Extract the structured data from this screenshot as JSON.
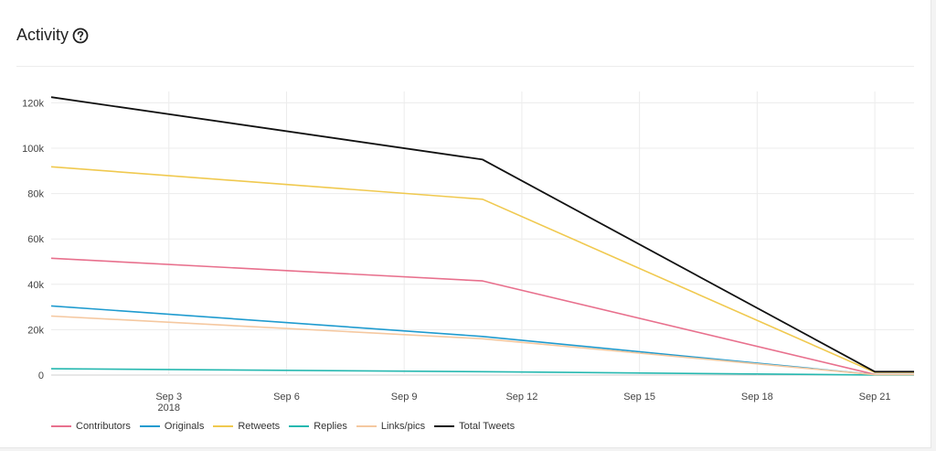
{
  "header": {
    "title": "Activity",
    "help_icon": "question-circle-icon"
  },
  "chart_data": {
    "type": "line",
    "x_axis": {
      "type": "date",
      "range": [
        "2018-08-31",
        "2018-09-22"
      ],
      "ticks": [
        {
          "date": "2018-09-03",
          "label": "Sep 3",
          "sublabel": "2018"
        },
        {
          "date": "2018-09-06",
          "label": "Sep 6"
        },
        {
          "date": "2018-09-09",
          "label": "Sep 9"
        },
        {
          "date": "2018-09-12",
          "label": "Sep 12"
        },
        {
          "date": "2018-09-15",
          "label": "Sep 15"
        },
        {
          "date": "2018-09-18",
          "label": "Sep 18"
        },
        {
          "date": "2018-09-21",
          "label": "Sep 21"
        }
      ]
    },
    "y_axis": {
      "range": [
        0,
        125000
      ],
      "ticks": [
        {
          "value": 0,
          "label": "0"
        },
        {
          "value": 20000,
          "label": "20k"
        },
        {
          "value": 40000,
          "label": "40k"
        },
        {
          "value": 60000,
          "label": "60k"
        },
        {
          "value": 80000,
          "label": "80k"
        },
        {
          "value": 100000,
          "label": "100k"
        },
        {
          "value": 120000,
          "label": "120k"
        }
      ]
    },
    "grid": true,
    "legend_position": "bottom-left",
    "x": [
      "2018-08-31",
      "2018-09-11",
      "2018-09-21",
      "2018-09-22"
    ],
    "series": [
      {
        "name": "Contributors",
        "color": "#e8708d",
        "values": [
          51500,
          41500,
          300,
          300
        ]
      },
      {
        "name": "Originals",
        "color": "#1f9bcf",
        "values": [
          30500,
          17000,
          200,
          200
        ]
      },
      {
        "name": "Retweets",
        "color": "#f0c94f",
        "values": [
          91800,
          77500,
          1200,
          1200
        ]
      },
      {
        "name": "Replies",
        "color": "#26b8b0",
        "values": [
          2800,
          1500,
          50,
          50
        ]
      },
      {
        "name": "Links/pics",
        "color": "#f5c8a0",
        "values": [
          26000,
          16000,
          150,
          150
        ]
      },
      {
        "name": "Total Tweets",
        "color": "#111111",
        "values": [
          122500,
          95000,
          1500,
          1500
        ]
      }
    ]
  }
}
